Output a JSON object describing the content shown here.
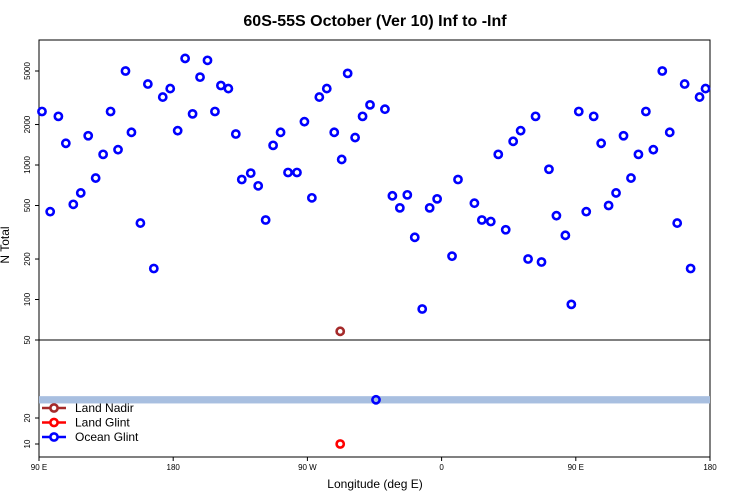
{
  "chart_data": {
    "type": "scatter",
    "title": "60S-55S October (Ver 10)   Inf to -Inf",
    "xlabel": "Longitude (deg E)",
    "ylabel": "N Total",
    "x_ticks": [
      {
        "value": 0,
        "label": "90 E"
      },
      {
        "value": 90,
        "label": "180"
      },
      {
        "value": 180,
        "label": "90 W"
      },
      {
        "value": 270,
        "label": "0"
      },
      {
        "value": 360,
        "label": "90 E"
      },
      {
        "value": 450,
        "label": "180"
      }
    ],
    "xlim": [
      0,
      450
    ],
    "upper_panel": {
      "scale": "log",
      "ylim": [
        50,
        8500
      ],
      "y_ticks": [
        {
          "value": 50,
          "label": "50"
        },
        {
          "value": 100,
          "label": "100"
        },
        {
          "value": 200,
          "label": "200"
        },
        {
          "value": 500,
          "label": "500"
        },
        {
          "value": 1000,
          "label": "1000"
        },
        {
          "value": 2000,
          "label": "2000"
        },
        {
          "value": 5000,
          "label": "5000"
        }
      ]
    },
    "lower_panel": {
      "scale": "linear",
      "ylim": [
        5,
        50
      ],
      "y_ticks": [
        {
          "value": 10,
          "label": "10"
        },
        {
          "value": 20,
          "label": "20"
        }
      ],
      "band": {
        "y_low": 25.6,
        "y_high": 28.4,
        "color": "#a8bfe0"
      }
    },
    "series": [
      {
        "name": "Land Nadir",
        "color": "#a52a2a",
        "points": [
          [
            202,
            58
          ]
        ]
      },
      {
        "name": "Land Glint",
        "color": "#ff0000",
        "points": [
          [
            202,
            10
          ]
        ]
      },
      {
        "name": "Ocean Glint",
        "color": "#0000ff",
        "points": [
          [
            2,
            2500
          ],
          [
            7.5,
            450
          ],
          [
            13,
            2300
          ],
          [
            18,
            1450
          ],
          [
            23,
            510
          ],
          [
            28,
            620
          ],
          [
            33,
            1650
          ],
          [
            38,
            800
          ],
          [
            43,
            1200
          ],
          [
            48,
            2500
          ],
          [
            53,
            1300
          ],
          [
            58,
            5000
          ],
          [
            62,
            1750
          ],
          [
            68,
            370
          ],
          [
            73,
            4000
          ],
          [
            77,
            170
          ],
          [
            83,
            3200
          ],
          [
            88,
            3700
          ],
          [
            93,
            1800
          ],
          [
            98,
            6200
          ],
          [
            103,
            2400
          ],
          [
            108,
            4500
          ],
          [
            113,
            6000
          ],
          [
            118,
            2500
          ],
          [
            122,
            3900
          ],
          [
            127,
            3700
          ],
          [
            132,
            1700
          ],
          [
            136,
            780
          ],
          [
            142,
            870
          ],
          [
            147,
            700
          ],
          [
            152,
            390
          ],
          [
            157,
            1400
          ],
          [
            162,
            1750
          ],
          [
            167,
            880
          ],
          [
            173,
            880
          ],
          [
            178,
            2100
          ],
          [
            183,
            570
          ],
          [
            188,
            3200
          ],
          [
            193,
            3700
          ],
          [
            198,
            1750
          ],
          [
            203,
            1100
          ],
          [
            207,
            4800
          ],
          [
            212,
            1600
          ],
          [
            217,
            2300
          ],
          [
            222,
            2800
          ],
          [
            232,
            2600
          ],
          [
            237,
            590
          ],
          [
            242,
            480
          ],
          [
            247,
            600
          ],
          [
            252,
            290
          ],
          [
            257,
            85
          ],
          [
            262,
            480
          ],
          [
            267,
            560
          ],
          [
            277,
            210
          ],
          [
            281,
            780
          ],
          [
            292,
            520
          ],
          [
            297,
            390
          ],
          [
            303,
            380
          ],
          [
            308,
            1200
          ],
          [
            313,
            330
          ],
          [
            318,
            1500
          ],
          [
            323,
            1800
          ],
          [
            328,
            200
          ],
          [
            333,
            2300
          ],
          [
            337,
            190
          ],
          [
            342,
            930
          ],
          [
            347,
            420
          ],
          [
            353,
            300
          ],
          [
            357,
            92
          ],
          [
            362,
            2500
          ],
          [
            367,
            450
          ],
          [
            372,
            2300
          ],
          [
            377,
            1450
          ],
          [
            382,
            500
          ],
          [
            387,
            620
          ],
          [
            392,
            1650
          ],
          [
            397,
            800
          ],
          [
            402,
            1200
          ],
          [
            407,
            2500
          ],
          [
            412,
            1300
          ],
          [
            418,
            5000
          ],
          [
            423,
            1750
          ],
          [
            428,
            370
          ],
          [
            433,
            4000
          ],
          [
            437,
            170
          ],
          [
            443,
            3200
          ],
          [
            447,
            3700
          ]
        ]
      }
    ],
    "lower_panel_points": [
      {
        "series": "Ocean Glint",
        "x": 226,
        "y": 27
      }
    ],
    "legend": {
      "placement": "bottom-left",
      "entries": [
        "Land Nadir",
        "Land Glint",
        "Ocean Glint"
      ]
    },
    "grid": false
  }
}
